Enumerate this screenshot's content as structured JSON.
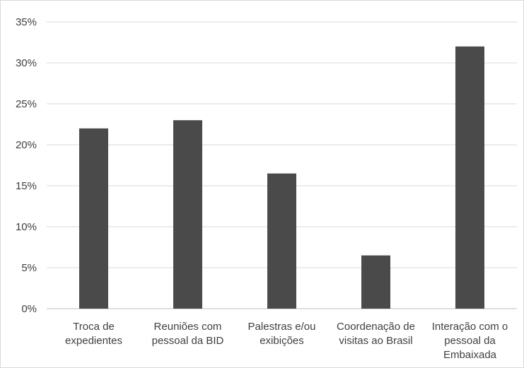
{
  "chart_data": {
    "type": "bar",
    "categories": [
      [
        "Troca de",
        "expedientes"
      ],
      [
        "Reuniões com",
        "pessoal da BID"
      ],
      [
        "Palestras e/ou",
        "exibições"
      ],
      [
        "Coordenação de",
        "visitas ao Brasil"
      ],
      [
        "Interação com o",
        "pessoal da",
        "Embaixada"
      ]
    ],
    "values": [
      22,
      23,
      16.5,
      6.5,
      32
    ],
    "yticks": [
      "0%",
      "5%",
      "10%",
      "15%",
      "20%",
      "25%",
      "30%",
      "35%"
    ],
    "ylim": [
      0,
      35
    ],
    "grid": true,
    "legend": "none",
    "colors": {
      "bar": "#4a4a4a",
      "grid": "#d9d9d9",
      "text": "#404040"
    }
  }
}
